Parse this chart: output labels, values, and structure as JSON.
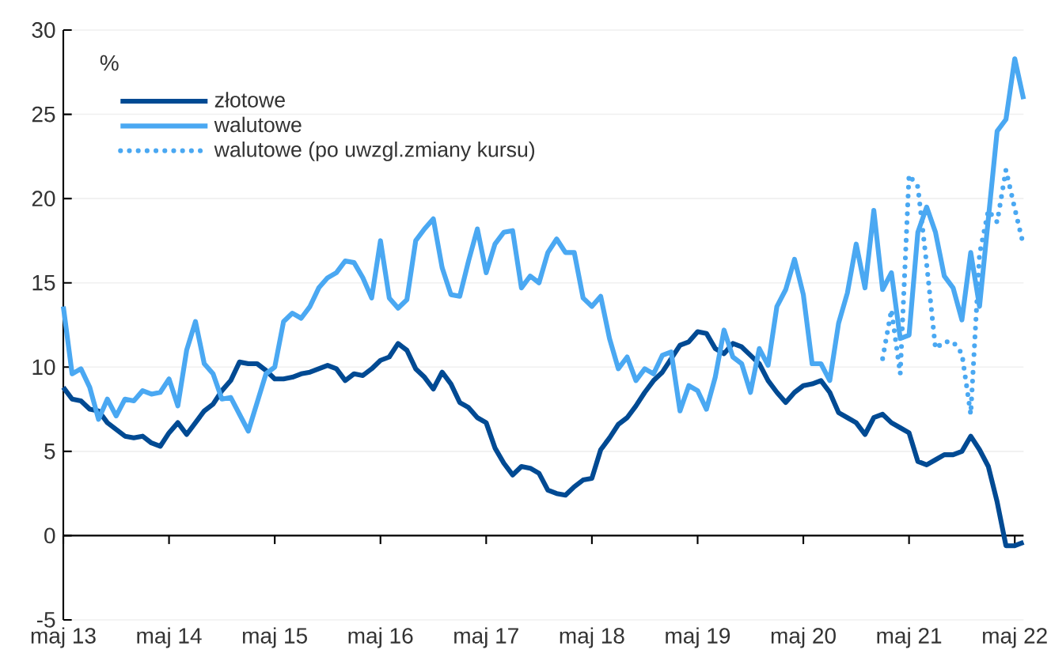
{
  "chart_data": {
    "type": "line",
    "ylabel": "%",
    "x": [
      "2013-05",
      "2013-06",
      "2013-07",
      "2013-08",
      "2013-09",
      "2013-10",
      "2013-11",
      "2013-12",
      "2014-01",
      "2014-02",
      "2014-03",
      "2014-04",
      "2014-05",
      "2014-06",
      "2014-07",
      "2014-08",
      "2014-09",
      "2014-10",
      "2014-11",
      "2014-12",
      "2015-01",
      "2015-02",
      "2015-03",
      "2015-04",
      "2015-05",
      "2015-06",
      "2015-07",
      "2015-08",
      "2015-09",
      "2015-10",
      "2015-11",
      "2015-12",
      "2016-01",
      "2016-02",
      "2016-03",
      "2016-04",
      "2016-05",
      "2016-06",
      "2016-07",
      "2016-08",
      "2016-09",
      "2016-10",
      "2016-11",
      "2016-12",
      "2017-01",
      "2017-02",
      "2017-03",
      "2017-04",
      "2017-05",
      "2017-06",
      "2017-07",
      "2017-08",
      "2017-09",
      "2017-10",
      "2017-11",
      "2017-12",
      "2018-01",
      "2018-02",
      "2018-03",
      "2018-04",
      "2018-05",
      "2018-06",
      "2018-07",
      "2018-08",
      "2018-09",
      "2018-10",
      "2018-11",
      "2018-12",
      "2019-01",
      "2019-02",
      "2019-03",
      "2019-04",
      "2019-05",
      "2019-06",
      "2019-07",
      "2019-08",
      "2019-09",
      "2019-10",
      "2019-11",
      "2019-12",
      "2020-01",
      "2020-02",
      "2020-03",
      "2020-04",
      "2020-05",
      "2020-06",
      "2020-07",
      "2020-08",
      "2020-09",
      "2020-10",
      "2020-11",
      "2020-12",
      "2021-01",
      "2021-02",
      "2021-03",
      "2021-04",
      "2021-05",
      "2021-06",
      "2021-07",
      "2021-08",
      "2021-09",
      "2021-10",
      "2021-11",
      "2021-12",
      "2022-01",
      "2022-02",
      "2022-03",
      "2022-04",
      "2022-05",
      "2022-06"
    ],
    "series": [
      {
        "name": "złotowe",
        "color": "#004a93",
        "line_style": "solid",
        "values": [
          8.8,
          8.1,
          8.0,
          7.5,
          7.4,
          6.7,
          6.3,
          5.9,
          5.8,
          5.9,
          5.5,
          5.3,
          6.1,
          6.7,
          6.0,
          6.7,
          7.4,
          7.8,
          8.6,
          9.2,
          10.3,
          10.2,
          10.2,
          9.8,
          9.3,
          9.3,
          9.4,
          9.6,
          9.7,
          9.9,
          10.1,
          9.9,
          9.2,
          9.6,
          9.5,
          9.9,
          10.4,
          10.6,
          11.4,
          11.0,
          9.9,
          9.4,
          8.7,
          9.7,
          9.0,
          7.9,
          7.6,
          7.0,
          6.7,
          5.2,
          4.3,
          3.6,
          4.1,
          4.0,
          3.7,
          2.7,
          2.5,
          2.4,
          2.9,
          3.3,
          3.4,
          5.1,
          5.8,
          6.6,
          7.0,
          7.7,
          8.5,
          9.2,
          9.7,
          10.5,
          11.3,
          11.5,
          12.1,
          12.0,
          11.1,
          10.8,
          11.4,
          11.2,
          10.7,
          10.2,
          9.2,
          8.5,
          7.9,
          8.5,
          8.9,
          9.0,
          9.2,
          8.5,
          7.3,
          7.0,
          6.7,
          6.0,
          7.0,
          7.2,
          6.7,
          6.4,
          6.1,
          4.4,
          4.2,
          4.5,
          4.8,
          4.8,
          5.0,
          5.9,
          5.1,
          4.1,
          2.0,
          -0.6,
          -0.6,
          -0.4
        ]
      },
      {
        "name": "walutowe",
        "color": "#4aa8f2",
        "line_style": "solid",
        "values": [
          13.6,
          9.6,
          9.9,
          8.8,
          6.9,
          8.1,
          7.1,
          8.1,
          8.0,
          8.6,
          8.4,
          8.5,
          9.3,
          7.7,
          11.0,
          12.7,
          10.2,
          9.6,
          8.1,
          8.2,
          7.2,
          6.2,
          7.9,
          9.6,
          10.0,
          12.7,
          13.2,
          12.9,
          13.6,
          14.7,
          15.3,
          15.6,
          16.3,
          16.2,
          15.3,
          14.1,
          17.5,
          14.1,
          13.5,
          14.0,
          17.5,
          18.2,
          18.8,
          15.9,
          14.3,
          14.2,
          16.3,
          18.2,
          15.6,
          17.3,
          18.0,
          18.1,
          14.7,
          15.4,
          15.0,
          16.8,
          17.6,
          16.8,
          16.8,
          14.1,
          13.6,
          14.2,
          11.7,
          9.9,
          10.6,
          9.2,
          9.9,
          9.6,
          10.7,
          10.9,
          7.4,
          8.9,
          8.6,
          7.5,
          9.4,
          12.2,
          10.6,
          10.2,
          8.5,
          11.1,
          10.1,
          13.6,
          14.6,
          16.4,
          14.3,
          10.2,
          10.2,
          9.2,
          12.6,
          14.4,
          17.3,
          14.7,
          19.3,
          14.6,
          15.6,
          11.7,
          11.9,
          18.0,
          19.5,
          18.0,
          15.4,
          14.7,
          12.8,
          16.8,
          13.6,
          18.8,
          24.0,
          24.7,
          28.3,
          25.9
        ]
      },
      {
        "name": "walutowe (po uwzgl.zmiany kursu)",
        "color": "#4aa8f2",
        "line_style": "dotted",
        "x": [
          "2021-02",
          "2021-03",
          "2021-04",
          "2021-05",
          "2021-06",
          "2021-07",
          "2021-08",
          "2021-09",
          "2021-10",
          "2021-11",
          "2021-12",
          "2022-01",
          "2022-02",
          "2022-03",
          "2022-04",
          "2022-05",
          "2022-06"
        ],
        "values": [
          10.5,
          13.4,
          9.6,
          21.4,
          20.7,
          16.1,
          11.1,
          11.5,
          11.5,
          10.8,
          7.2,
          16.7,
          19.3,
          18.6,
          21.7,
          19.4,
          17.2
        ]
      }
    ],
    "xlim": [
      "2013-05",
      "2022-06"
    ],
    "xticks": [
      {
        "value": "2013-05",
        "label": "maj 13"
      },
      {
        "value": "2014-05",
        "label": "maj 14"
      },
      {
        "value": "2015-05",
        "label": "maj 15"
      },
      {
        "value": "2016-05",
        "label": "maj 16"
      },
      {
        "value": "2017-05",
        "label": "maj 17"
      },
      {
        "value": "2018-05",
        "label": "maj 18"
      },
      {
        "value": "2019-05",
        "label": "maj 19"
      },
      {
        "value": "2020-05",
        "label": "maj 20"
      },
      {
        "value": "2021-05",
        "label": "maj 21"
      },
      {
        "value": "2022-05",
        "label": "maj 22"
      }
    ],
    "ylim": [
      -5,
      30
    ],
    "yticks": [
      -5,
      0,
      5,
      10,
      15,
      20,
      25,
      30
    ],
    "grid": "y",
    "legend": "top left",
    "marker": "none"
  }
}
